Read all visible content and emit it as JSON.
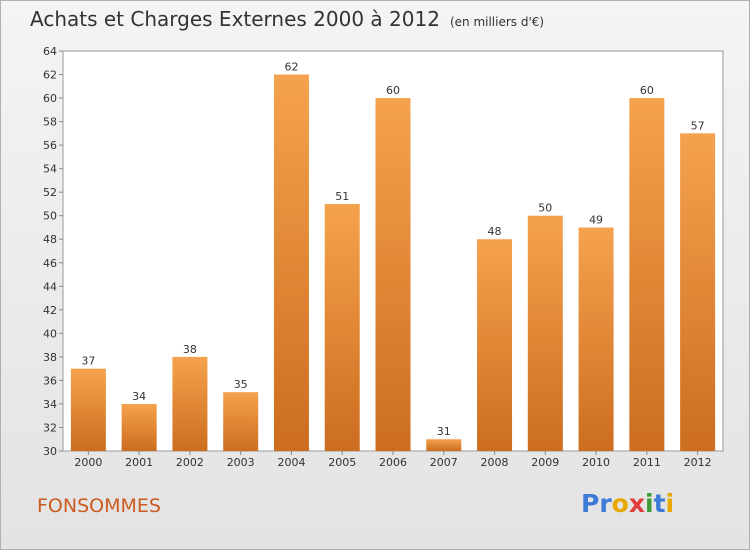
{
  "header": {
    "title": "Achats et Charges Externes 2000 à 2012",
    "subtitle": "(en milliers d'€)"
  },
  "footer": {
    "place": "FONSOMMES",
    "logo": [
      "P",
      "r",
      "o",
      "x",
      "i",
      "t",
      "i"
    ]
  },
  "colors": {
    "bar_top": "#f5a24e",
    "bar_bottom": "#cc6d1f",
    "place": "#cc5a1e",
    "logo": [
      "#3d7bd6",
      "#3d7bd6",
      "#e8a800",
      "#e23c3c",
      "#3d9b35",
      "#3d7bd6",
      "#e8a800"
    ]
  },
  "chart_data": {
    "type": "bar",
    "title": "Achats et Charges Externes 2000 à 2012",
    "subtitle": "(en milliers d'€)",
    "categories": [
      "2000",
      "2001",
      "2002",
      "2003",
      "2004",
      "2005",
      "2006",
      "2007",
      "2008",
      "2009",
      "2010",
      "2011",
      "2012"
    ],
    "values": [
      37,
      34,
      38,
      35,
      62,
      51,
      60,
      31,
      48,
      50,
      49,
      60,
      57
    ],
    "ylim": [
      30,
      64
    ],
    "yticks": [
      30,
      32,
      34,
      36,
      38,
      40,
      42,
      44,
      46,
      48,
      50,
      52,
      54,
      56,
      58,
      60,
      62,
      64
    ],
    "grid": false
  }
}
